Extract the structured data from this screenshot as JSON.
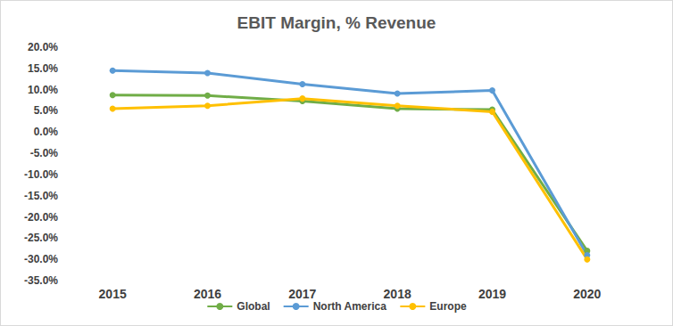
{
  "chart_data": {
    "type": "line",
    "title": "EBIT Margin, % Revenue",
    "categories": [
      "2015",
      "2016",
      "2017",
      "2018",
      "2019",
      "2020"
    ],
    "series": [
      {
        "name": "Global",
        "color": "#70AD47",
        "values": [
          8.7,
          8.6,
          7.3,
          5.5,
          5.3,
          -28.0
        ]
      },
      {
        "name": "North America",
        "color": "#5B9BD5",
        "values": [
          14.5,
          13.9,
          11.3,
          9.1,
          9.8,
          -29.0
        ]
      },
      {
        "name": "Europe",
        "color": "#FFC000",
        "values": [
          5.5,
          6.2,
          7.9,
          6.2,
          4.8,
          -30.0
        ]
      }
    ],
    "ylim": [
      -35,
      20
    ],
    "yticks": [
      {
        "value": -35,
        "label": "-35.0%"
      },
      {
        "value": -30,
        "label": "-30.0%"
      },
      {
        "value": -25,
        "label": "-25.0%"
      },
      {
        "value": -20,
        "label": "-20.0%"
      },
      {
        "value": -15,
        "label": "-15.0%"
      },
      {
        "value": -10,
        "label": "-10.0%"
      },
      {
        "value": -5,
        "label": "-5.0%"
      },
      {
        "value": 0,
        "label": "0.0%"
      },
      {
        "value": 5,
        "label": "5.0%"
      },
      {
        "value": 10,
        "label": "10.0%"
      },
      {
        "value": 15,
        "label": "15.0%"
      },
      {
        "value": 20,
        "label": "20.0%"
      }
    ],
    "grid": false,
    "legend": "bottom",
    "marker": "circle"
  }
}
